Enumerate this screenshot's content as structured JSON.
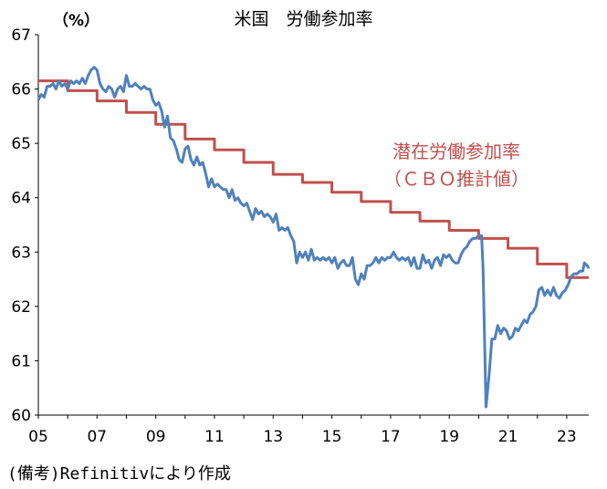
{
  "chart_data": {
    "type": "line",
    "title": "米国　労働参加率",
    "ylabel": "（%）",
    "ylim": [
      60,
      67
    ],
    "yticks": [
      "60",
      "61",
      "62",
      "63",
      "64",
      "65",
      "66",
      "67"
    ],
    "xlim": [
      2005.0,
      2023.75
    ],
    "xticks": [
      "05",
      "07",
      "09",
      "11",
      "13",
      "15",
      "17",
      "19",
      "21",
      "23"
    ],
    "grid": false,
    "annotations": [
      "潜在労働参加率",
      "（ＣＢＯ推計値）"
    ],
    "source_note": "(備考)Refinitivにより作成",
    "series": [
      {
        "name": "潜在労働参加率（ＣＢＯ推計値）",
        "color": "#c0504d",
        "points": [
          [
            2005.0,
            66.15
          ],
          [
            2006.0,
            66.15
          ],
          [
            2006.0,
            65.97
          ],
          [
            2007.0,
            65.97
          ],
          [
            2007.0,
            65.78
          ],
          [
            2008.0,
            65.78
          ],
          [
            2008.0,
            65.57
          ],
          [
            2009.0,
            65.57
          ],
          [
            2009.0,
            65.35
          ],
          [
            2010.0,
            65.35
          ],
          [
            2010.0,
            65.08
          ],
          [
            2011.0,
            65.08
          ],
          [
            2011.0,
            64.88
          ],
          [
            2012.0,
            64.88
          ],
          [
            2012.0,
            64.65
          ],
          [
            2013.0,
            64.65
          ],
          [
            2013.0,
            64.43
          ],
          [
            2014.0,
            64.43
          ],
          [
            2014.0,
            64.28
          ],
          [
            2015.0,
            64.28
          ],
          [
            2015.0,
            64.1
          ],
          [
            2016.0,
            64.1
          ],
          [
            2016.0,
            63.93
          ],
          [
            2017.0,
            63.93
          ],
          [
            2017.0,
            63.73
          ],
          [
            2018.0,
            63.73
          ],
          [
            2018.0,
            63.57
          ],
          [
            2019.0,
            63.57
          ],
          [
            2019.0,
            63.4
          ],
          [
            2020.0,
            63.4
          ],
          [
            2020.0,
            63.25
          ],
          [
            2021.0,
            63.25
          ],
          [
            2021.0,
            63.07
          ],
          [
            2022.0,
            63.07
          ],
          [
            2022.0,
            62.78
          ],
          [
            2023.0,
            62.78
          ],
          [
            2023.0,
            62.53
          ],
          [
            2023.75,
            62.53
          ]
        ]
      },
      {
        "name": "労働参加率",
        "color": "#4f81bd",
        "points": [
          [
            2005.0,
            65.8
          ],
          [
            2005.1,
            65.9
          ],
          [
            2005.2,
            65.85
          ],
          [
            2005.3,
            66.05
          ],
          [
            2005.4,
            66.05
          ],
          [
            2005.5,
            66.1
          ],
          [
            2005.6,
            66.0
          ],
          [
            2005.7,
            66.15
          ],
          [
            2005.8,
            66.05
          ],
          [
            2005.9,
            66.1
          ],
          [
            2006.0,
            66.0
          ],
          [
            2006.1,
            66.15
          ],
          [
            2006.2,
            66.1
          ],
          [
            2006.3,
            66.15
          ],
          [
            2006.4,
            66.1
          ],
          [
            2006.5,
            66.2
          ],
          [
            2006.6,
            66.1
          ],
          [
            2006.7,
            66.25
          ],
          [
            2006.8,
            66.35
          ],
          [
            2006.9,
            66.4
          ],
          [
            2007.0,
            66.35
          ],
          [
            2007.1,
            66.1
          ],
          [
            2007.2,
            66.0
          ],
          [
            2007.3,
            65.95
          ],
          [
            2007.4,
            66.05
          ],
          [
            2007.5,
            66.0
          ],
          [
            2007.6,
            65.85
          ],
          [
            2007.7,
            66.0
          ],
          [
            2007.8,
            66.05
          ],
          [
            2007.9,
            65.95
          ],
          [
            2008.0,
            66.25
          ],
          [
            2008.1,
            66.05
          ],
          [
            2008.2,
            66.05
          ],
          [
            2008.3,
            66.1
          ],
          [
            2008.4,
            66.05
          ],
          [
            2008.5,
            66.0
          ],
          [
            2008.6,
            66.05
          ],
          [
            2008.7,
            66.0
          ],
          [
            2008.8,
            66.0
          ],
          [
            2008.9,
            65.8
          ],
          [
            2009.0,
            65.7
          ],
          [
            2009.1,
            65.75
          ],
          [
            2009.2,
            65.6
          ],
          [
            2009.3,
            65.3
          ],
          [
            2009.4,
            65.5
          ],
          [
            2009.5,
            65.1
          ],
          [
            2009.6,
            65.05
          ],
          [
            2009.7,
            64.9
          ],
          [
            2009.8,
            64.7
          ],
          [
            2009.9,
            64.65
          ],
          [
            2010.0,
            64.9
          ],
          [
            2010.1,
            64.95
          ],
          [
            2010.2,
            64.7
          ],
          [
            2010.3,
            64.6
          ],
          [
            2010.4,
            64.75
          ],
          [
            2010.5,
            64.6
          ],
          [
            2010.6,
            64.65
          ],
          [
            2010.7,
            64.45
          ],
          [
            2010.8,
            64.2
          ],
          [
            2010.9,
            64.35
          ],
          [
            2011.0,
            64.2
          ],
          [
            2011.1,
            64.25
          ],
          [
            2011.2,
            64.2
          ],
          [
            2011.3,
            64.15
          ],
          [
            2011.4,
            64.15
          ],
          [
            2011.5,
            64.0
          ],
          [
            2011.6,
            64.15
          ],
          [
            2011.7,
            63.95
          ],
          [
            2011.8,
            64.0
          ],
          [
            2011.9,
            63.9
          ],
          [
            2012.0,
            63.85
          ],
          [
            2012.1,
            63.9
          ],
          [
            2012.2,
            63.75
          ],
          [
            2012.3,
            63.6
          ],
          [
            2012.4,
            63.8
          ],
          [
            2012.5,
            63.7
          ],
          [
            2012.6,
            63.75
          ],
          [
            2012.7,
            63.65
          ],
          [
            2012.8,
            63.7
          ],
          [
            2012.9,
            63.65
          ],
          [
            2013.0,
            63.55
          ],
          [
            2013.1,
            63.7
          ],
          [
            2013.2,
            63.4
          ],
          [
            2013.3,
            63.45
          ],
          [
            2013.4,
            63.4
          ],
          [
            2013.5,
            63.45
          ],
          [
            2013.6,
            63.3
          ],
          [
            2013.7,
            63.2
          ],
          [
            2013.8,
            62.8
          ],
          [
            2013.9,
            63.0
          ],
          [
            2014.0,
            62.9
          ],
          [
            2014.1,
            63.0
          ],
          [
            2014.2,
            62.85
          ],
          [
            2014.3,
            63.05
          ],
          [
            2014.4,
            62.85
          ],
          [
            2014.5,
            62.9
          ],
          [
            2014.6,
            62.85
          ],
          [
            2014.7,
            62.9
          ],
          [
            2014.8,
            62.85
          ],
          [
            2014.9,
            62.9
          ],
          [
            2015.0,
            62.8
          ],
          [
            2015.1,
            62.9
          ],
          [
            2015.2,
            62.7
          ],
          [
            2015.3,
            62.8
          ],
          [
            2015.4,
            62.85
          ],
          [
            2015.5,
            62.75
          ],
          [
            2015.6,
            62.75
          ],
          [
            2015.7,
            62.9
          ],
          [
            2015.8,
            62.5
          ],
          [
            2015.9,
            62.4
          ],
          [
            2016.0,
            62.6
          ],
          [
            2016.1,
            62.5
          ],
          [
            2016.2,
            62.75
          ],
          [
            2016.3,
            62.75
          ],
          [
            2016.4,
            62.8
          ],
          [
            2016.5,
            62.9
          ],
          [
            2016.6,
            62.8
          ],
          [
            2016.7,
            62.9
          ],
          [
            2016.8,
            62.85
          ],
          [
            2016.9,
            62.9
          ],
          [
            2017.0,
            62.9
          ],
          [
            2017.1,
            63.0
          ],
          [
            2017.2,
            62.9
          ],
          [
            2017.3,
            62.85
          ],
          [
            2017.4,
            62.9
          ],
          [
            2017.5,
            62.85
          ],
          [
            2017.6,
            62.9
          ],
          [
            2017.7,
            62.75
          ],
          [
            2017.8,
            62.9
          ],
          [
            2017.9,
            62.7
          ],
          [
            2018.0,
            62.7
          ],
          [
            2018.1,
            62.95
          ],
          [
            2018.2,
            62.8
          ],
          [
            2018.3,
            62.85
          ],
          [
            2018.4,
            62.7
          ],
          [
            2018.5,
            62.85
          ],
          [
            2018.6,
            62.9
          ],
          [
            2018.7,
            62.75
          ],
          [
            2018.8,
            62.95
          ],
          [
            2018.9,
            62.9
          ],
          [
            2019.0,
            62.95
          ],
          [
            2019.1,
            62.85
          ],
          [
            2019.2,
            62.8
          ],
          [
            2019.3,
            62.8
          ],
          [
            2019.4,
            62.95
          ],
          [
            2019.5,
            63.05
          ],
          [
            2019.6,
            63.1
          ],
          [
            2019.7,
            63.2
          ],
          [
            2019.8,
            63.25
          ],
          [
            2019.9,
            63.25
          ],
          [
            2020.0,
            63.3
          ],
          [
            2020.1,
            63.3
          ],
          [
            2020.15,
            62.7
          ],
          [
            2020.25,
            60.15
          ],
          [
            2020.35,
            60.7
          ],
          [
            2020.45,
            61.4
          ],
          [
            2020.55,
            61.4
          ],
          [
            2020.65,
            61.65
          ],
          [
            2020.75,
            61.5
          ],
          [
            2020.85,
            61.6
          ],
          [
            2020.95,
            61.55
          ],
          [
            2021.05,
            61.4
          ],
          [
            2021.15,
            61.45
          ],
          [
            2021.25,
            61.6
          ],
          [
            2021.35,
            61.55
          ],
          [
            2021.45,
            61.65
          ],
          [
            2021.55,
            61.75
          ],
          [
            2021.65,
            61.7
          ],
          [
            2021.75,
            61.85
          ],
          [
            2021.85,
            61.9
          ],
          [
            2021.95,
            62.0
          ],
          [
            2022.05,
            62.3
          ],
          [
            2022.15,
            62.35
          ],
          [
            2022.25,
            62.2
          ],
          [
            2022.35,
            62.3
          ],
          [
            2022.45,
            62.2
          ],
          [
            2022.55,
            62.35
          ],
          [
            2022.65,
            62.2
          ],
          [
            2022.75,
            62.15
          ],
          [
            2022.85,
            62.25
          ],
          [
            2022.95,
            62.3
          ],
          [
            2023.05,
            62.4
          ],
          [
            2023.15,
            62.55
          ],
          [
            2023.25,
            62.6
          ],
          [
            2023.35,
            62.6
          ],
          [
            2023.45,
            62.65
          ],
          [
            2023.55,
            62.65
          ],
          [
            2023.6,
            62.8
          ],
          [
            2023.7,
            62.75
          ],
          [
            2023.75,
            62.7
          ]
        ]
      }
    ]
  }
}
